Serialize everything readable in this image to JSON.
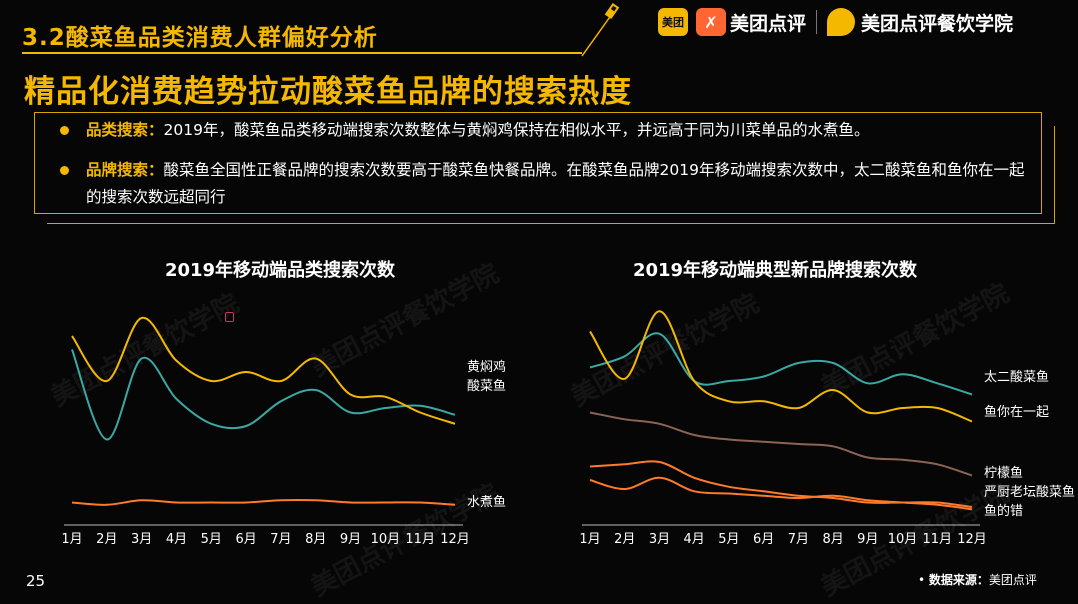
{
  "header": {
    "section_title": "3.2酸菜鱼品类消费人群偏好分析",
    "main_title": "精品化消费趋势拉动酸菜鱼品牌的搜索热度",
    "brands": [
      {
        "icon": "meituan-logo-icon",
        "box_text": "美团"
      },
      {
        "icon": "dianping-logo-icon",
        "label": "美团点评"
      },
      {
        "icon": "academy-leaf-icon",
        "label": "美团点评餐饮学院"
      }
    ]
  },
  "summary": {
    "bullets": [
      {
        "label": "品类搜索：",
        "text": "2019年，酸菜鱼品类移动端搜索次数整体与黄焖鸡保持在相似水平，并远高于同为川菜单品的水煮鱼。"
      },
      {
        "label": "品牌搜索：",
        "text": "酸菜鱼全国性正餐品牌的搜索次数要高于酸菜鱼快餐品牌。在酸菜鱼品牌2019年移动端搜索次数中，太二酸菜鱼和鱼你在一起的搜索次数远超同行"
      }
    ]
  },
  "watermark": "美团点评餐饮学院",
  "footer": {
    "page_number": "25",
    "source_label": "数据来源：",
    "source_value": "美团点评"
  },
  "colors": {
    "accent": "#f5b800",
    "orange": "#ff7a2a",
    "teal": "#3aa8a3",
    "brown": "#8c6454",
    "background": "#060606"
  },
  "chart_data": [
    {
      "type": "line",
      "title": "2019年移动端品类搜索次数",
      "categories": [
        "1月",
        "2月",
        "3月",
        "4月",
        "5月",
        "6月",
        "7月",
        "8月",
        "9月",
        "10月",
        "11月",
        "12月"
      ],
      "ylim": [
        0,
        100
      ],
      "grid": false,
      "legend": "inline-right",
      "series": [
        {
          "name": "黄焖鸡",
          "color": "#3aa8a3",
          "values": [
            78,
            38,
            74,
            56,
            45,
            44,
            55,
            60,
            50,
            52,
            53,
            49
          ]
        },
        {
          "name": "酸菜鱼",
          "color": "#f5b800",
          "values": [
            84,
            64,
            92,
            73,
            64,
            68,
            64,
            74,
            58,
            57,
            50,
            45
          ]
        },
        {
          "name": "水煮鱼",
          "color": "#ff7a2a",
          "values": [
            10,
            9,
            11,
            10,
            10,
            10,
            11,
            11,
            10,
            10,
            10,
            9
          ]
        }
      ]
    },
    {
      "type": "line",
      "title": "2019年移动端典型新品牌搜索次数",
      "categories": [
        "1月",
        "2月",
        "3月",
        "4月",
        "5月",
        "6月",
        "7月",
        "8月",
        "9月",
        "10月",
        "11月",
        "12月"
      ],
      "ylim": [
        0,
        100
      ],
      "grid": false,
      "legend": "inline-right",
      "series": [
        {
          "name": "太二酸菜鱼",
          "color": "#3aa8a3",
          "values": [
            70,
            75,
            85,
            64,
            64,
            66,
            72,
            72,
            63,
            67,
            63,
            58
          ]
        },
        {
          "name": "鱼你在一起",
          "color": "#f5b800",
          "values": [
            86,
            65,
            95,
            64,
            55,
            55,
            52,
            60,
            50,
            52,
            52,
            46
          ]
        },
        {
          "name": "柠檬鱼",
          "color": "#8c6454",
          "values": [
            50,
            47,
            45,
            40,
            38,
            37,
            36,
            35,
            30,
            29,
            27,
            22
          ]
        },
        {
          "name": "严厨老坛酸菜鱼",
          "color": "#ff7a2a",
          "values": [
            26,
            27,
            28,
            21,
            17,
            15,
            13,
            12,
            10,
            10,
            10,
            8
          ]
        },
        {
          "name": "鱼的错",
          "color": "#ff7a2a",
          "values": [
            20,
            16,
            21,
            15,
            14,
            13,
            12,
            13,
            11,
            10,
            9,
            7
          ]
        }
      ]
    }
  ]
}
